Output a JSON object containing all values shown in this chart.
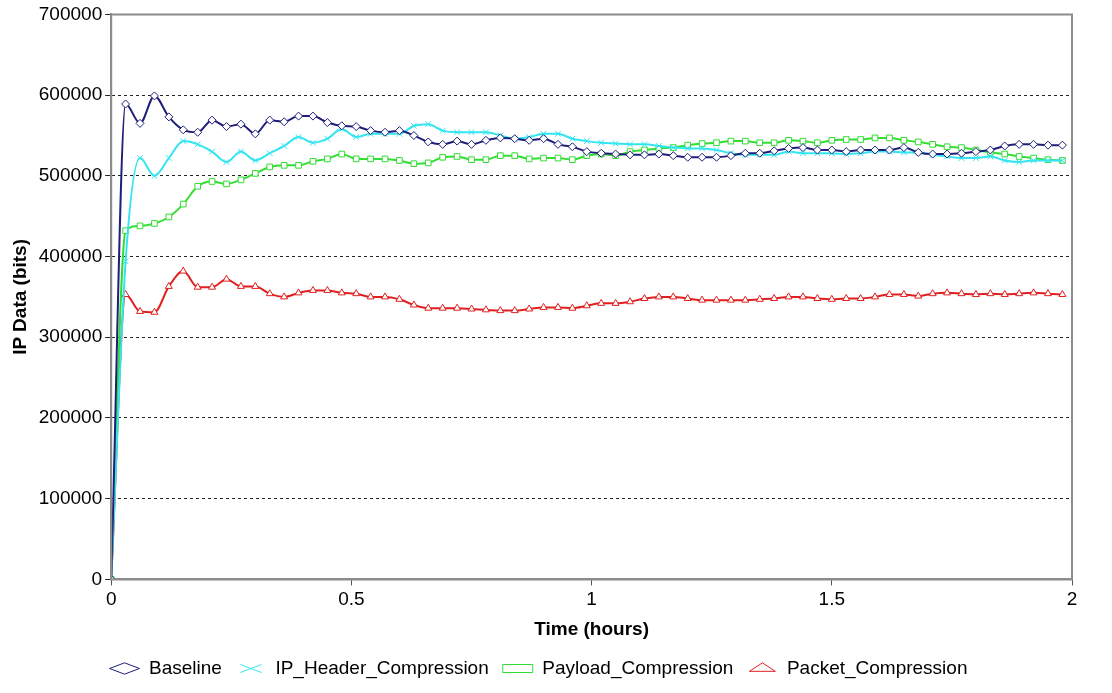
{
  "chart_data": {
    "type": "line",
    "xlabel": "Time (hours)",
    "ylabel": "IP Data (bits)",
    "x": [
      0,
      0.03,
      0.06,
      0.09,
      0.12,
      0.15,
      0.18,
      0.21,
      0.24,
      0.27,
      0.3,
      0.33,
      0.36,
      0.39,
      0.42,
      0.45,
      0.48,
      0.51,
      0.54,
      0.57,
      0.6,
      0.63,
      0.66,
      0.69,
      0.72,
      0.75,
      0.78,
      0.81,
      0.84,
      0.87,
      0.9,
      0.93,
      0.96,
      0.99,
      1.02,
      1.05,
      1.08,
      1.11,
      1.14,
      1.17,
      1.2,
      1.23,
      1.26,
      1.29,
      1.32,
      1.35,
      1.38,
      1.41,
      1.44,
      1.47,
      1.5,
      1.53,
      1.56,
      1.59,
      1.62,
      1.65,
      1.68,
      1.71,
      1.74,
      1.77,
      1.8,
      1.83,
      1.86,
      1.89,
      1.92,
      1.95,
      1.98
    ],
    "xlim": [
      0,
      2
    ],
    "xticks": [
      0,
      0.5,
      1,
      1.5,
      2
    ],
    "ylim": [
      0,
      700000
    ],
    "yticks": [
      0,
      100000,
      200000,
      300000,
      400000,
      500000,
      600000,
      700000
    ],
    "grid": "y",
    "legend": "bottom",
    "line_style": "solid",
    "series": [
      {
        "name": "Baseline",
        "color": "#1f1f7a",
        "marker": "diamond",
        "values": [
          0,
          589000,
          565000,
          599000,
          573000,
          557000,
          554000,
          569000,
          561000,
          564000,
          552000,
          569000,
          567000,
          574000,
          574000,
          566000,
          562000,
          561000,
          556000,
          554000,
          556000,
          550000,
          542000,
          539000,
          543000,
          539000,
          544000,
          547000,
          546000,
          544000,
          546000,
          539000,
          536000,
          530000,
          528000,
          527000,
          526000,
          526000,
          527000,
          525000,
          523000,
          523000,
          523000,
          525000,
          528000,
          528000,
          531000,
          534000,
          535000,
          532000,
          532000,
          530000,
          532000,
          532000,
          532000,
          535000,
          529000,
          527000,
          527000,
          528000,
          530000,
          532000,
          537000,
          539000,
          539000,
          538000,
          538000
        ]
      },
      {
        "name": "IP_Header_Compression",
        "color": "#33e5f0",
        "marker": "cross",
        "values": [
          0,
          394000,
          522000,
          500000,
          522000,
          543000,
          539000,
          530000,
          517000,
          530000,
          519000,
          528000,
          537000,
          548000,
          541000,
          546000,
          558000,
          548000,
          552000,
          552000,
          552000,
          562000,
          564000,
          556000,
          554000,
          554000,
          554000,
          550000,
          546000,
          548000,
          552000,
          552000,
          546000,
          543000,
          541000,
          540000,
          539000,
          539000,
          537000,
          535000,
          534000,
          534000,
          532000,
          528000,
          526000,
          526000,
          526000,
          530000,
          528000,
          528000,
          528000,
          527000,
          528000,
          530000,
          530000,
          529000,
          529000,
          526000,
          524000,
          522000,
          522000,
          524000,
          519000,
          517000,
          519000,
          519000,
          519000
        ]
      },
      {
        "name": "Payload_Compression",
        "color": "#33dd33",
        "marker": "square",
        "values": [
          0,
          432000,
          438000,
          441000,
          449000,
          465000,
          487000,
          493000,
          490000,
          495000,
          503000,
          511000,
          513000,
          513000,
          518000,
          521000,
          527000,
          521000,
          521000,
          521000,
          519000,
          515000,
          516000,
          523000,
          524000,
          520000,
          520000,
          525000,
          525000,
          521000,
          522000,
          522000,
          520000,
          525000,
          527000,
          525000,
          530000,
          532000,
          534000,
          535000,
          538000,
          540000,
          541000,
          543000,
          543000,
          541000,
          541000,
          544000,
          543000,
          541000,
          544000,
          545000,
          545000,
          547000,
          547000,
          544000,
          542000,
          539000,
          536000,
          535000,
          532000,
          529000,
          527000,
          524000,
          522000,
          520000,
          519000
        ]
      },
      {
        "name": "Packet_Compression",
        "color": "#e02020",
        "marker": "triangle",
        "values": [
          0,
          353000,
          332000,
          331000,
          363000,
          382000,
          362000,
          362000,
          372000,
          363000,
          363000,
          354000,
          350000,
          355000,
          358000,
          358000,
          355000,
          354000,
          350000,
          350000,
          347000,
          340000,
          336000,
          336000,
          336000,
          335000,
          334000,
          333000,
          333000,
          335000,
          337000,
          337000,
          336000,
          339000,
          342000,
          342000,
          344000,
          348000,
          350000,
          350000,
          348000,
          346000,
          346000,
          346000,
          346000,
          347000,
          348000,
          350000,
          350000,
          348000,
          347000,
          348000,
          348000,
          350000,
          353000,
          353000,
          351000,
          354000,
          355000,
          354000,
          353000,
          354000,
          353000,
          354000,
          355000,
          354000,
          353000
        ]
      }
    ]
  }
}
